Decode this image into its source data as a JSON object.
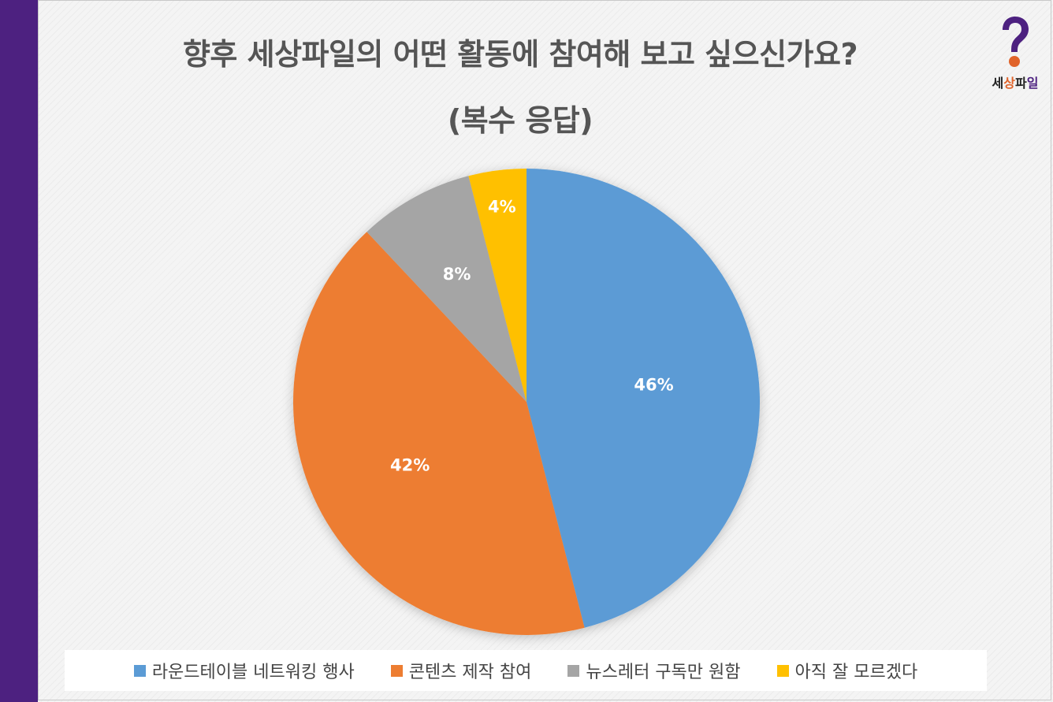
{
  "title": {
    "line1": "향후 세상파일의 어떤 활동에 참여해 보고 싶으신가요?",
    "line2": "(복수 응답)"
  },
  "logo": {
    "icon": "question-mark-icon",
    "text_part1": "세",
    "text_part2": "상",
    "text_part3": "파",
    "text_part4": "일",
    "colors": {
      "purple": "#4d2180",
      "orange": "#e0632a"
    }
  },
  "chart_data": {
    "type": "pie",
    "categories": [
      "라운드테이블 네트워킹 행사",
      "콘텐츠 제작 참여",
      "뉴스레터 구독만 원함",
      "아직 잘 모르겠다"
    ],
    "values": [
      46,
      42,
      8,
      4
    ],
    "labels": [
      "46%",
      "42%",
      "8%",
      "4%"
    ],
    "colors": [
      "#5b9bd5",
      "#ed7d31",
      "#a5a5a5",
      "#ffc000"
    ],
    "start_angle": "12 o'clock, clockwise",
    "legend_position": "bottom"
  }
}
